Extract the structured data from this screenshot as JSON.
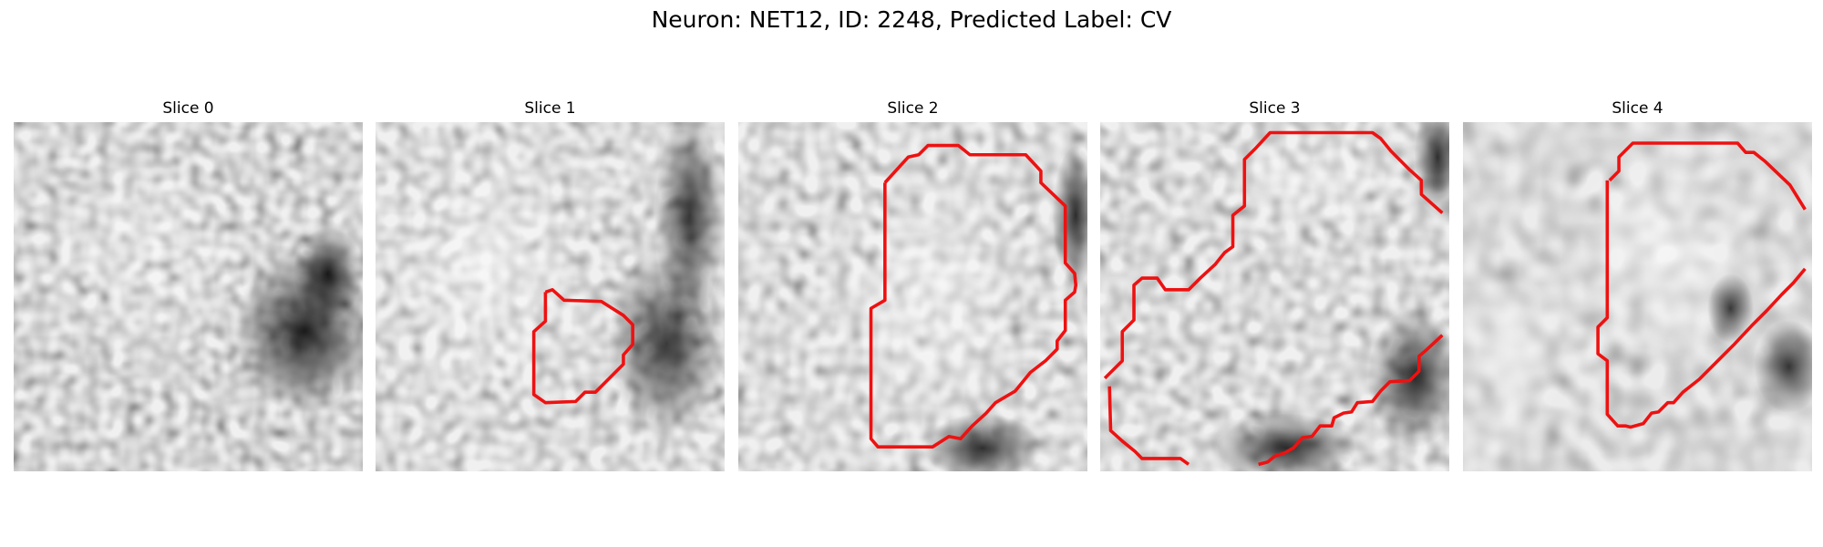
{
  "figure": {
    "title": "Neuron: NET12, ID: 2248, Predicted Label: CV",
    "contour_color": "#ee1111",
    "colormap": "grayscale",
    "slices": [
      {
        "label": "Slice 0",
        "has_contour": false
      },
      {
        "label": "Slice 1",
        "has_contour": true
      },
      {
        "label": "Slice 2",
        "has_contour": true
      },
      {
        "label": "Slice 3",
        "has_contour": true
      },
      {
        "label": "Slice 4",
        "has_contour": true
      }
    ]
  }
}
